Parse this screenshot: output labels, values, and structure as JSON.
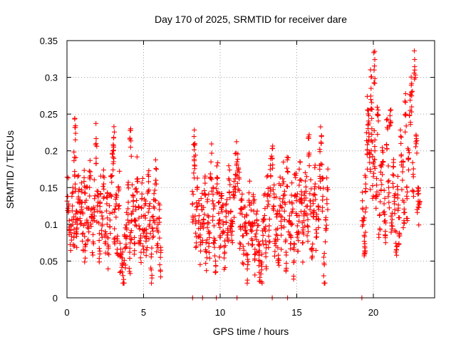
{
  "chart_data": {
    "type": "scatter",
    "title": "Day 170 of 2025, SRMTID for receiver dare",
    "xlabel": "GPS time / hours",
    "ylabel": "SRMTID / TECUs",
    "xlim": [
      0,
      24
    ],
    "ylim": [
      0,
      0.35
    ],
    "x_ticks": [
      0,
      5,
      10,
      15,
      20
    ],
    "x_tick_labels": [
      "0",
      "5",
      "10",
      "15",
      "20"
    ],
    "y_ticks": [
      0,
      0.05,
      0.1,
      0.15,
      0.2,
      0.25,
      0.3,
      0.35
    ],
    "y_tick_labels": [
      "0",
      "0.05",
      "0.1",
      "0.15",
      "0.2",
      "0.25",
      "0.3",
      "0.35"
    ],
    "grid": true,
    "marker": "+",
    "series": [
      {
        "name": "SRMTID",
        "color": "#ff0000",
        "points": [
          [
            0.05,
            0.138
          ],
          [
            0.15,
            0.105
          ],
          [
            0.25,
            0.092
          ],
          [
            0.35,
            0.125
          ],
          [
            0.45,
            0.082
          ],
          [
            0.5,
            0.172
          ],
          [
            0.55,
            0.215
          ],
          [
            0.6,
            0.118
          ],
          [
            0.65,
            0.095
          ],
          [
            0.75,
            0.145
          ],
          [
            0.85,
            0.108
          ],
          [
            0.95,
            0.13
          ],
          [
            1.05,
            0.088
          ],
          [
            1.15,
            0.152
          ],
          [
            1.2,
            0.072
          ],
          [
            1.3,
            0.122
          ],
          [
            1.4,
            0.098
          ],
          [
            1.5,
            0.162
          ],
          [
            1.6,
            0.11
          ],
          [
            1.7,
            0.086
          ],
          [
            1.8,
            0.135
          ],
          [
            1.9,
            0.21
          ],
          [
            2.0,
            0.118
          ],
          [
            2.1,
            0.078
          ],
          [
            2.2,
            0.142
          ],
          [
            2.3,
            0.1
          ],
          [
            2.4,
            0.155
          ],
          [
            2.5,
            0.09
          ],
          [
            2.6,
            0.128
          ],
          [
            2.7,
            0.067
          ],
          [
            2.8,
            0.115
          ],
          [
            2.9,
            0.138
          ],
          [
            3.0,
            0.2
          ],
          [
            3.05,
            0.205
          ],
          [
            3.1,
            0.094
          ],
          [
            3.2,
            0.125
          ],
          [
            3.3,
            0.084
          ],
          [
            3.4,
            0.148
          ],
          [
            3.5,
            0.06
          ],
          [
            3.6,
            0.035
          ],
          [
            3.7,
            0.025
          ],
          [
            3.8,
            0.068
          ],
          [
            3.9,
            0.095
          ],
          [
            4.0,
            0.13
          ],
          [
            4.1,
            0.062
          ],
          [
            4.15,
            0.205
          ],
          [
            4.2,
            0.104
          ],
          [
            4.3,
            0.14
          ],
          [
            4.4,
            0.082
          ],
          [
            4.5,
            0.12
          ],
          [
            4.6,
            0.162
          ],
          [
            4.7,
            0.098
          ],
          [
            4.8,
            0.074
          ],
          [
            4.9,
            0.135
          ],
          [
            5.0,
            0.088
          ],
          [
            5.1,
            0.112
          ],
          [
            5.2,
            0.065
          ],
          [
            5.3,
            0.145
          ],
          [
            5.4,
            0.1
          ],
          [
            5.5,
            0.038
          ],
          [
            5.6,
            0.082
          ],
          [
            5.7,
            0.122
          ],
          [
            5.8,
            0.16
          ],
          [
            5.9,
            0.092
          ],
          [
            6.0,
            0.108
          ],
          [
            6.1,
            0.055
          ],
          [
            8.2,
            0.128
          ],
          [
            8.3,
            0.192
          ],
          [
            8.35,
            0.21
          ],
          [
            8.4,
            0.088
          ],
          [
            8.5,
            0.15
          ],
          [
            8.6,
            0.105
          ],
          [
            8.7,
            0.072
          ],
          [
            8.8,
            0.12
          ],
          [
            8.9,
            0.095
          ],
          [
            9.0,
            0.14
          ],
          [
            9.1,
            0.062
          ],
          [
            9.2,
            0.112
          ],
          [
            9.3,
            0.082
          ],
          [
            9.4,
            0.185
          ],
          [
            9.5,
            0.132
          ],
          [
            9.6,
            0.098
          ],
          [
            9.7,
            0.05
          ],
          [
            9.8,
            0.155
          ],
          [
            9.9,
            0.115
          ],
          [
            10.0,
            0.085
          ],
          [
            10.1,
            0.142
          ],
          [
            10.2,
            0.1
          ],
          [
            10.3,
            0.062
          ],
          [
            10.4,
            0.128
          ],
          [
            10.5,
            0.092
          ],
          [
            10.6,
            0.16
          ],
          [
            10.7,
            0.118
          ],
          [
            10.8,
            0.075
          ],
          [
            10.9,
            0.136
          ],
          [
            11.0,
            0.168
          ],
          [
            11.1,
            0.185
          ],
          [
            11.2,
            0.175
          ],
          [
            11.3,
            0.096
          ],
          [
            11.4,
            0.122
          ],
          [
            11.5,
            0.07
          ],
          [
            11.6,
            0.11
          ],
          [
            11.7,
            0.088
          ],
          [
            11.8,
            0.045
          ],
          [
            11.9,
            0.13
          ],
          [
            12.0,
            0.1
          ],
          [
            12.1,
            0.078
          ],
          [
            12.2,
            0.118
          ],
          [
            12.3,
            0.06
          ],
          [
            12.4,
            0.092
          ],
          [
            12.5,
            0.072
          ],
          [
            12.6,
            0.05
          ],
          [
            12.7,
            0.038
          ],
          [
            12.8,
            0.085
          ],
          [
            12.9,
            0.112
          ],
          [
            13.0,
            0.068
          ],
          [
            13.1,
            0.14
          ],
          [
            13.2,
            0.098
          ],
          [
            13.3,
            0.165
          ],
          [
            13.4,
            0.19
          ],
          [
            13.5,
            0.125
          ],
          [
            13.6,
            0.08
          ],
          [
            13.7,
            0.11
          ],
          [
            13.8,
            0.058
          ],
          [
            13.9,
            0.135
          ],
          [
            14.0,
            0.095
          ],
          [
            14.1,
            0.155
          ],
          [
            14.2,
            0.118
          ],
          [
            14.3,
            0.062
          ],
          [
            14.4,
            0.172
          ],
          [
            14.5,
            0.105
          ],
          [
            14.6,
            0.085
          ],
          [
            14.7,
            0.128
          ],
          [
            14.8,
            0.048
          ],
          [
            14.9,
            0.14
          ],
          [
            15.0,
            0.112
          ],
          [
            15.1,
            0.09
          ],
          [
            15.2,
            0.16
          ],
          [
            15.3,
            0.13
          ],
          [
            15.4,
            0.075
          ],
          [
            15.5,
            0.118
          ],
          [
            15.6,
            0.145
          ],
          [
            15.7,
            0.098
          ],
          [
            15.8,
            0.195
          ],
          [
            15.9,
            0.132
          ],
          [
            16.0,
            0.064
          ],
          [
            16.1,
            0.11
          ],
          [
            16.2,
            0.155
          ],
          [
            16.3,
            0.088
          ],
          [
            16.4,
            0.125
          ],
          [
            16.5,
            0.175
          ],
          [
            16.6,
            0.21
          ],
          [
            16.7,
            0.138
          ],
          [
            16.8,
            0.045
          ],
          [
            16.9,
            0.092
          ],
          [
            17.0,
            0.15
          ],
          [
            19.3,
            0.122
          ],
          [
            19.4,
            0.085
          ],
          [
            19.45,
            0.068
          ],
          [
            19.5,
            0.145
          ],
          [
            19.6,
            0.195
          ],
          [
            19.65,
            0.255
          ],
          [
            19.7,
            0.215
          ],
          [
            19.8,
            0.175
          ],
          [
            19.85,
            0.285
          ],
          [
            19.9,
            0.23
          ],
          [
            20.0,
            0.165
          ],
          [
            20.05,
            0.31
          ],
          [
            20.1,
            0.2
          ],
          [
            20.2,
            0.138
          ],
          [
            20.3,
            0.248
          ],
          [
            20.4,
            0.112
          ],
          [
            20.5,
            0.16
          ],
          [
            20.6,
            0.185
          ],
          [
            20.7,
            0.128
          ],
          [
            20.8,
            0.075
          ],
          [
            20.9,
            0.232
          ],
          [
            21.0,
            0.15
          ],
          [
            21.1,
            0.255
          ],
          [
            21.2,
            0.098
          ],
          [
            21.3,
            0.178
          ],
          [
            21.4,
            0.12
          ],
          [
            21.5,
            0.065
          ],
          [
            21.6,
            0.14
          ],
          [
            21.7,
            0.088
          ],
          [
            21.8,
            0.21
          ],
          [
            21.9,
            0.16
          ],
          [
            22.0,
            0.105
          ],
          [
            22.1,
            0.248
          ],
          [
            22.2,
            0.135
          ],
          [
            22.3,
            0.19
          ],
          [
            22.4,
            0.255
          ],
          [
            22.5,
            0.28
          ],
          [
            22.6,
            0.168
          ],
          [
            22.7,
            0.31
          ],
          [
            22.8,
            0.22
          ],
          [
            22.9,
            0.145
          ],
          [
            23.0,
            0.128
          ]
        ]
      }
    ],
    "zero_markers_x": [
      8.2,
      8.85,
      9.75,
      11.1,
      13.4,
      14.4,
      19.25
    ]
  }
}
